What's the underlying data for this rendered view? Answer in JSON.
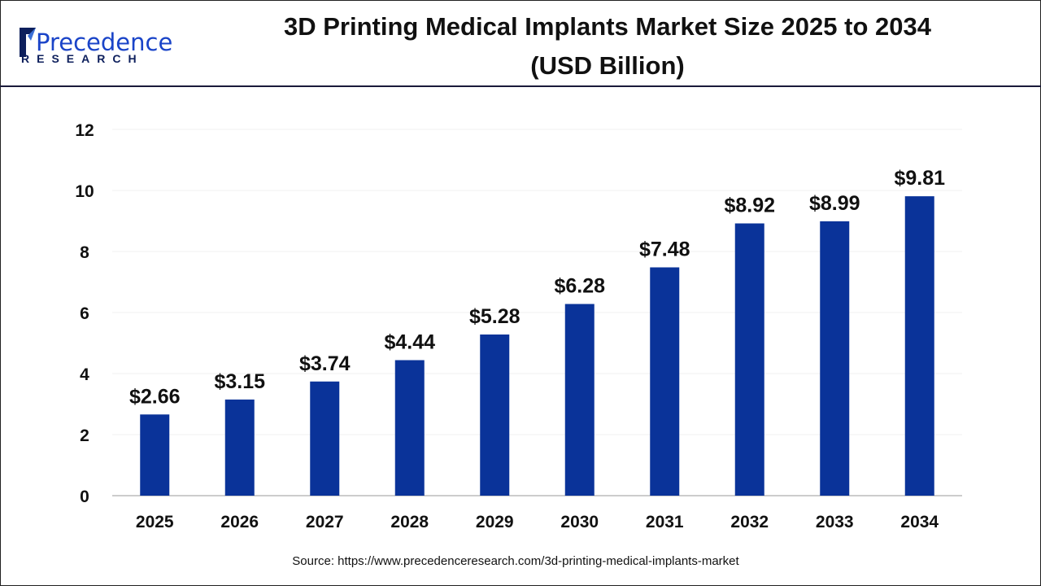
{
  "logo": {
    "name": "Precedence",
    "sub": "RESEARCH"
  },
  "chart_data": {
    "type": "bar",
    "title": "3D Printing Medical Implants Market Size 2025 to 2034",
    "subtitle": "(USD Billion)",
    "categories": [
      "2025",
      "2026",
      "2027",
      "2028",
      "2029",
      "2030",
      "2031",
      "2032",
      "2033",
      "2034"
    ],
    "values": [
      2.66,
      3.15,
      3.74,
      4.44,
      5.28,
      6.28,
      7.48,
      8.92,
      8.99,
      9.81
    ],
    "data_labels": [
      "$2.66",
      "$3.15",
      "$3.74",
      "$4.44",
      "$5.28",
      "$6.28",
      "$7.48",
      "$8.92",
      "$8.99",
      "$9.81"
    ],
    "ylim": [
      0,
      12
    ],
    "yticks": [
      "0",
      "2",
      "4",
      "6",
      "8",
      "10",
      "12"
    ],
    "xlabel": "",
    "ylabel": "",
    "grid": true,
    "bar_color": "#0a3399"
  },
  "source": "Source: https://www.precedenceresearch.com/3d-printing-medical-implants-market"
}
